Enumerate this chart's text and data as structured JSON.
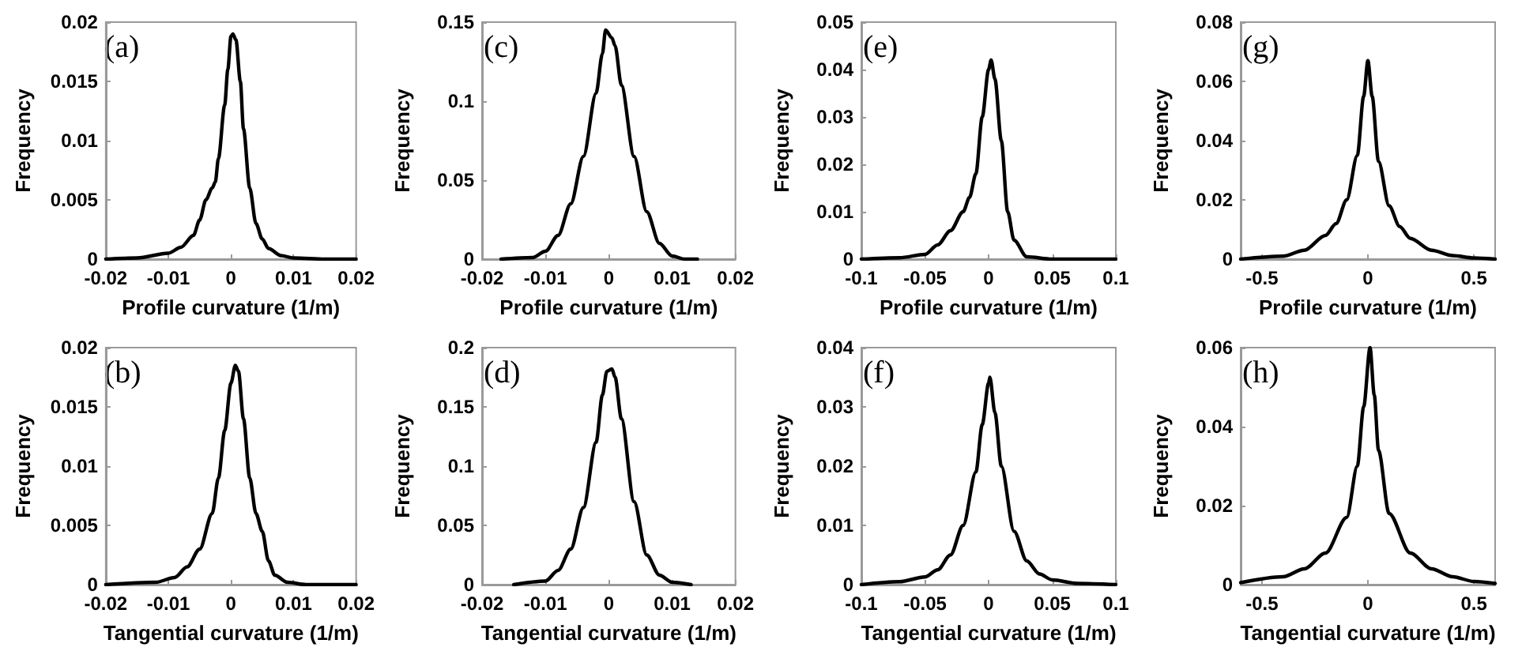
{
  "chart_data": [
    {
      "type": "line",
      "xlabel": "Profile curvature (1/m)",
      "ylabel": "Frequency",
      "annotations": [
        "(a)"
      ],
      "xlim": [
        -0.02,
        0.02
      ],
      "xticks": [
        -0.02,
        -0.01,
        0,
        0.01,
        0.02
      ],
      "ylim": [
        0,
        0.02
      ],
      "yticks": [
        0,
        0.005,
        0.01,
        0.015,
        0.02
      ],
      "grid": false,
      "marker": "none",
      "line_style": "solid",
      "x": [
        -0.02,
        -0.015,
        -0.01,
        -0.008,
        -0.006,
        -0.005,
        -0.004,
        -0.003,
        -0.0025,
        -0.002,
        -0.001,
        -0.0005,
        0,
        0.0003,
        0.0008,
        0.0015,
        0.002,
        0.003,
        0.004,
        0.005,
        0.006,
        0.008,
        0.01,
        0.015,
        0.02
      ],
      "series": [
        {
          "color": "#000000",
          "values": [
            0,
            0.0001,
            0.0005,
            0.001,
            0.002,
            0.0033,
            0.005,
            0.006,
            0.0065,
            0.0085,
            0.013,
            0.016,
            0.0188,
            0.019,
            0.0185,
            0.015,
            0.011,
            0.006,
            0.003,
            0.0017,
            0.0009,
            0.0003,
            0.0001,
            0,
            0
          ]
        }
      ]
    },
    {
      "type": "line",
      "xlabel": "Profile curvature (1/m)",
      "ylabel": "Frequency",
      "annotations": [
        "(c)"
      ],
      "xlim": [
        -0.02,
        0.02
      ],
      "xticks": [
        -0.02,
        -0.01,
        0,
        0.01,
        0.02
      ],
      "ylim": [
        0,
        0.15
      ],
      "yticks": [
        0,
        0.05,
        0.1,
        0.15
      ],
      "grid": false,
      "marker": "none",
      "line_style": "solid",
      "x": [
        -0.017,
        -0.012,
        -0.01,
        -0.008,
        -0.006,
        -0.004,
        -0.002,
        -0.001,
        -0.0005,
        0.0005,
        0.001,
        0.002,
        0.004,
        0.006,
        0.008,
        0.01,
        0.012,
        0.014
      ],
      "series": [
        {
          "color": "#000000",
          "values": [
            0,
            0.001,
            0.005,
            0.015,
            0.035,
            0.065,
            0.105,
            0.13,
            0.145,
            0.14,
            0.135,
            0.11,
            0.065,
            0.03,
            0.01,
            0.002,
            0,
            0
          ]
        }
      ]
    },
    {
      "type": "line",
      "xlabel": "Profile curvature (1/m)",
      "ylabel": "Frequency",
      "annotations": [
        "(e)"
      ],
      "xlim": [
        -0.1,
        0.1
      ],
      "xticks": [
        -0.1,
        -0.05,
        0,
        0.05,
        0.1
      ],
      "ylim": [
        0,
        0.05
      ],
      "yticks": [
        0,
        0.01,
        0.02,
        0.03,
        0.04,
        0.05
      ],
      "grid": false,
      "marker": "none",
      "line_style": "solid",
      "x": [
        -0.1,
        -0.07,
        -0.05,
        -0.04,
        -0.03,
        -0.02,
        -0.015,
        -0.01,
        -0.005,
        0,
        0.002,
        0.005,
        0.01,
        0.015,
        0.02,
        0.03,
        0.05,
        0.1
      ],
      "series": [
        {
          "color": "#000000",
          "values": [
            0,
            0.0003,
            0.001,
            0.003,
            0.006,
            0.01,
            0.013,
            0.018,
            0.03,
            0.04,
            0.042,
            0.038,
            0.025,
            0.01,
            0.004,
            0.0005,
            0,
            0
          ]
        }
      ]
    },
    {
      "type": "line",
      "xlabel": "Profile curvature (1/m)",
      "ylabel": "Frequency",
      "annotations": [
        "(g)"
      ],
      "xlim": [
        -0.6,
        0.6
      ],
      "xticks": [
        -0.5,
        0,
        0.5
      ],
      "ylim": [
        0,
        0.08
      ],
      "yticks": [
        0,
        0.02,
        0.04,
        0.06,
        0.08
      ],
      "grid": false,
      "marker": "none",
      "line_style": "solid",
      "x": [
        -0.6,
        -0.4,
        -0.3,
        -0.2,
        -0.15,
        -0.1,
        -0.05,
        -0.02,
        0,
        0.02,
        0.05,
        0.1,
        0.15,
        0.2,
        0.3,
        0.4,
        0.5,
        0.6
      ],
      "series": [
        {
          "color": "#000000",
          "values": [
            0,
            0.001,
            0.003,
            0.008,
            0.012,
            0.02,
            0.035,
            0.055,
            0.067,
            0.055,
            0.033,
            0.018,
            0.011,
            0.007,
            0.003,
            0.0012,
            0.0004,
            0
          ]
        }
      ]
    },
    {
      "type": "line",
      "xlabel": "Tangential curvature (1/m)",
      "ylabel": "Frequency",
      "annotations": [
        "(b)"
      ],
      "xlim": [
        -0.02,
        0.02
      ],
      "xticks": [
        -0.02,
        -0.01,
        0,
        0.01,
        0.02
      ],
      "ylim": [
        0,
        0.02
      ],
      "yticks": [
        0,
        0.005,
        0.01,
        0.015,
        0.02
      ],
      "grid": false,
      "marker": "none",
      "line_style": "solid",
      "x": [
        -0.02,
        -0.012,
        -0.009,
        -0.007,
        -0.005,
        -0.003,
        -0.002,
        -0.001,
        0,
        0.0007,
        0.0012,
        0.002,
        0.003,
        0.004,
        0.005,
        0.006,
        0.007,
        0.009,
        0.012,
        0.02
      ],
      "series": [
        {
          "color": "#000000",
          "values": [
            0,
            0.0002,
            0.0006,
            0.0015,
            0.003,
            0.006,
            0.009,
            0.013,
            0.017,
            0.0185,
            0.018,
            0.014,
            0.009,
            0.006,
            0.0045,
            0.002,
            0.0008,
            0.0002,
            0,
            0
          ]
        }
      ]
    },
    {
      "type": "line",
      "xlabel": "Tangential curvature (1/m)",
      "ylabel": "Frequency",
      "annotations": [
        "(d)"
      ],
      "xlim": [
        -0.02,
        0.02
      ],
      "xticks": [
        -0.02,
        -0.01,
        0,
        0.01,
        0.02
      ],
      "ylim": [
        0,
        0.2
      ],
      "yticks": [
        0,
        0.05,
        0.1,
        0.15,
        0.2
      ],
      "grid": false,
      "marker": "none",
      "line_style": "solid",
      "x": [
        -0.015,
        -0.01,
        -0.008,
        -0.006,
        -0.004,
        -0.002,
        -0.001,
        -0.0003,
        0.0005,
        0.001,
        0.002,
        0.004,
        0.006,
        0.008,
        0.01,
        0.013
      ],
      "series": [
        {
          "color": "#000000",
          "values": [
            0,
            0.003,
            0.012,
            0.03,
            0.065,
            0.12,
            0.16,
            0.18,
            0.182,
            0.175,
            0.14,
            0.07,
            0.025,
            0.008,
            0.002,
            0
          ]
        }
      ]
    },
    {
      "type": "line",
      "xlabel": "Tangential curvature (1/m)",
      "ylabel": "Frequency",
      "annotations": [
        "(f)"
      ],
      "xlim": [
        -0.1,
        0.1
      ],
      "xticks": [
        -0.1,
        -0.05,
        0,
        0.05,
        0.1
      ],
      "ylim": [
        0,
        0.04
      ],
      "yticks": [
        0,
        0.01,
        0.02,
        0.03,
        0.04
      ],
      "grid": false,
      "marker": "none",
      "line_style": "solid",
      "x": [
        -0.1,
        -0.07,
        -0.05,
        -0.04,
        -0.03,
        -0.02,
        -0.01,
        -0.005,
        0,
        0.001,
        0.005,
        0.01,
        0.02,
        0.03,
        0.04,
        0.05,
        0.07,
        0.1
      ],
      "series": [
        {
          "color": "#000000",
          "values": [
            0,
            0.0005,
            0.0013,
            0.0025,
            0.005,
            0.01,
            0.019,
            0.027,
            0.034,
            0.035,
            0.029,
            0.02,
            0.009,
            0.004,
            0.0018,
            0.0008,
            0.0002,
            0
          ]
        }
      ]
    },
    {
      "type": "line",
      "xlabel": "Tangential curvature (1/m)",
      "ylabel": "Frequency",
      "annotations": [
        "(h)"
      ],
      "xlim": [
        -0.6,
        0.6
      ],
      "xticks": [
        -0.5,
        0,
        0.5
      ],
      "ylim": [
        0,
        0.06
      ],
      "yticks": [
        0,
        0.02,
        0.04,
        0.06
      ],
      "grid": false,
      "marker": "none",
      "line_style": "solid",
      "x": [
        -0.6,
        -0.4,
        -0.3,
        -0.2,
        -0.1,
        -0.05,
        -0.02,
        0.01,
        0.03,
        0.05,
        0.1,
        0.2,
        0.3,
        0.4,
        0.5,
        0.6
      ],
      "series": [
        {
          "color": "#000000",
          "values": [
            0.0005,
            0.002,
            0.004,
            0.008,
            0.017,
            0.03,
            0.045,
            0.06,
            0.048,
            0.034,
            0.018,
            0.008,
            0.004,
            0.002,
            0.0008,
            0.0003
          ]
        }
      ]
    }
  ]
}
